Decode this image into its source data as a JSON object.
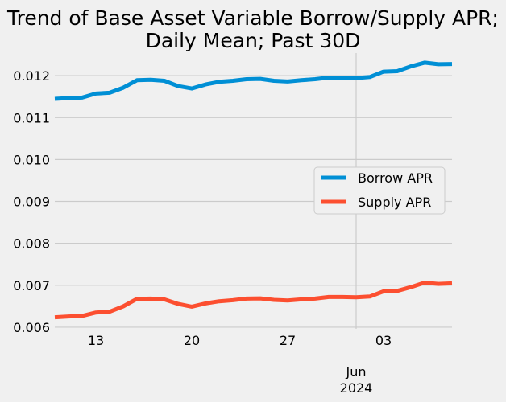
{
  "chart_data": {
    "type": "line",
    "title": "Trend of Base Asset Variable Borrow/Supply APR;\nDaily Mean; Past 30D",
    "title_lines": [
      "Trend of Base Asset Variable Borrow/Supply APR;",
      "Daily Mean; Past 30D"
    ],
    "xlabel": "",
    "ylabel": "",
    "x": [
      "2024-05-10",
      "2024-05-11",
      "2024-05-12",
      "2024-05-13",
      "2024-05-14",
      "2024-05-15",
      "2024-05-16",
      "2024-05-17",
      "2024-05-18",
      "2024-05-19",
      "2024-05-20",
      "2024-05-21",
      "2024-05-22",
      "2024-05-23",
      "2024-05-24",
      "2024-05-25",
      "2024-05-26",
      "2024-05-27",
      "2024-05-28",
      "2024-05-29",
      "2024-05-30",
      "2024-05-31",
      "2024-06-01",
      "2024-06-02",
      "2024-06-03",
      "2024-06-04",
      "2024-06-05",
      "2024-06-06",
      "2024-06-07",
      "2024-06-08"
    ],
    "series": [
      {
        "name": "Borrow APR",
        "color": "#008fd5",
        "values": [
          0.011446,
          0.011465,
          0.011478,
          0.011573,
          0.011592,
          0.011713,
          0.011892,
          0.011904,
          0.011879,
          0.011752,
          0.011694,
          0.01179,
          0.011854,
          0.011879,
          0.011917,
          0.011924,
          0.011879,
          0.01186,
          0.011892,
          0.011917,
          0.011955,
          0.011955,
          0.011943,
          0.011968,
          0.012096,
          0.012108,
          0.012223,
          0.012312,
          0.012274,
          0.01228
        ]
      },
      {
        "name": "Supply APR",
        "color": "#fc4f30",
        "values": [
          0.006236,
          0.006255,
          0.006268,
          0.00635,
          0.006369,
          0.006497,
          0.006675,
          0.006682,
          0.006662,
          0.006554,
          0.00649,
          0.006567,
          0.006618,
          0.006643,
          0.006682,
          0.006688,
          0.00665,
          0.006637,
          0.006662,
          0.006682,
          0.00672,
          0.00672,
          0.006713,
          0.006732,
          0.006854,
          0.006866,
          0.006955,
          0.007064,
          0.007032,
          0.007045
        ]
      }
    ],
    "ylim": [
      0.00596,
      0.01254
    ],
    "yticks": [
      0.006,
      0.007,
      0.008,
      0.009,
      0.01,
      0.011,
      0.012
    ],
    "ytick_labels": [
      "0.006",
      "0.007",
      "0.008",
      "0.009",
      "0.010",
      "0.011",
      "0.012"
    ],
    "xticks": [
      {
        "date": "2024-05-13",
        "label": "13"
      },
      {
        "date": "2024-05-20",
        "label": "20"
      },
      {
        "date": "2024-05-27",
        "label": "27"
      },
      {
        "date": "2024-06-03",
        "label": "03"
      }
    ],
    "major_xtick": {
      "date": "2024-06-01",
      "label_lines": [
        "Jun",
        "2024"
      ]
    },
    "grid": true,
    "legend_position": "center-right"
  }
}
